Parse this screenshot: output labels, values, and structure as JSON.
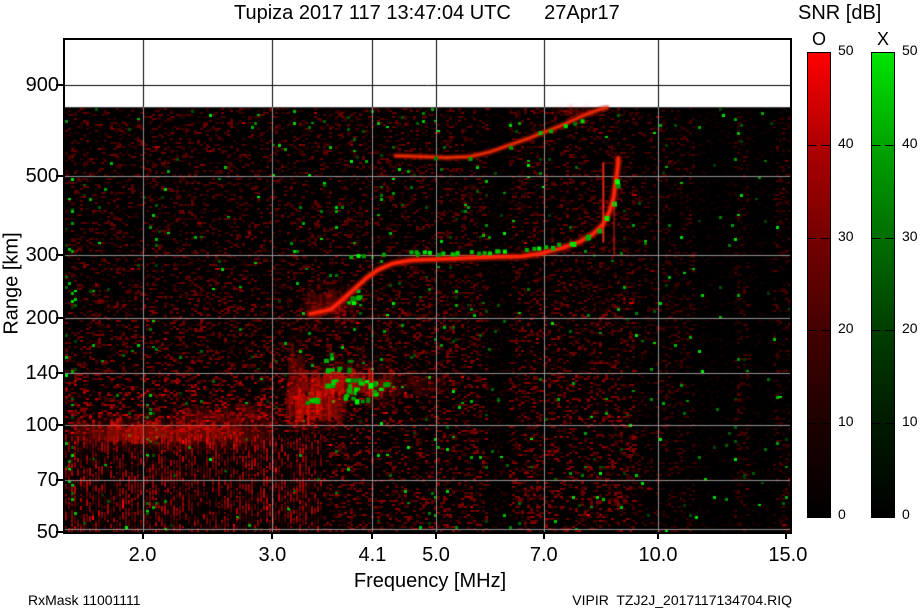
{
  "header": {
    "title": "Tupiza 2017 117 13:47:04 UTC      27Apr17"
  },
  "colorbar_panel": {
    "title": "SNR [dB]",
    "ticks": [
      50,
      40,
      30,
      20,
      10,
      0
    ],
    "bars": [
      {
        "label": "O",
        "top_color": "#ff0000"
      },
      {
        "label": "X",
        "top_color": "#00e400"
      }
    ]
  },
  "axes": {
    "x_title": "Frequency [MHz]",
    "y_title": "Range [km]"
  },
  "footer": {
    "left": "RxMask 11001111",
    "right": "VIPIR  TZJ2J_2017117134704.RIQ"
  },
  "chart_data": {
    "type": "heatmap",
    "title": "Tupiza 2017 117 13:47:04 UTC 27Apr17",
    "xlabel": "Frequency [MHz]",
    "ylabel": "Range [km]",
    "x_scale": "log",
    "y_scale": "log",
    "x_ticks": [
      2.0,
      3.0,
      4.1,
      5.0,
      7.0,
      10.0,
      15.0
    ],
    "y_ticks": [
      50,
      70,
      100,
      140,
      200,
      300,
      500,
      900
    ],
    "x_range": [
      1.57,
      15.1
    ],
    "y_range": [
      50,
      1205
    ],
    "data_region_top_km": 780,
    "snr_scale": {
      "min": 0,
      "max": 50,
      "ticks": [
        50,
        40,
        30,
        20,
        10,
        0
      ]
    },
    "series": [
      {
        "name": "O-mode F trace",
        "mode": "O",
        "color": "#ff2308",
        "style": "trace-strong",
        "points": [
          [
            3.38,
            205
          ],
          [
            3.6,
            211
          ],
          [
            3.71,
            222
          ],
          [
            3.86,
            239
          ],
          [
            4.02,
            258
          ],
          [
            4.18,
            273
          ],
          [
            4.37,
            284
          ],
          [
            4.62,
            290
          ],
          [
            5.0,
            292
          ],
          [
            5.49,
            294
          ],
          [
            6.03,
            296
          ],
          [
            6.52,
            297
          ],
          [
            6.93,
            303
          ],
          [
            7.38,
            313
          ],
          [
            7.81,
            326
          ],
          [
            8.16,
            343
          ],
          [
            8.42,
            366
          ],
          [
            8.6,
            398
          ],
          [
            8.71,
            438
          ],
          [
            8.77,
            489
          ],
          [
            8.82,
            531
          ],
          [
            8.83,
            560
          ]
        ]
      },
      {
        "name": "X-mode F trace",
        "mode": "X",
        "color": "#00d400",
        "style": "squares",
        "points": [
          [
            3.83,
            301
          ],
          [
            4.21,
            305
          ],
          [
            4.69,
            307
          ],
          [
            5.32,
            307
          ],
          [
            6.03,
            309
          ],
          [
            6.62,
            313
          ],
          [
            7.16,
            319
          ],
          [
            7.62,
            329
          ],
          [
            7.98,
            343
          ],
          [
            8.29,
            359
          ],
          [
            8.5,
            385
          ],
          [
            8.66,
            424
          ],
          [
            8.74,
            473
          ],
          [
            8.79,
            513
          ]
        ]
      },
      {
        "name": "O-mode second hop",
        "mode": "O",
        "color": "#e02800",
        "style": "trace-soft",
        "points": [
          [
            4.41,
            570
          ],
          [
            4.77,
            567
          ],
          [
            5.16,
            563
          ],
          [
            5.57,
            567
          ],
          [
            5.93,
            585
          ],
          [
            6.32,
            613
          ],
          [
            6.72,
            641
          ],
          [
            7.16,
            675
          ],
          [
            7.5,
            702
          ],
          [
            7.86,
            734
          ],
          [
            8.16,
            757
          ],
          [
            8.37,
            771
          ],
          [
            8.52,
            776
          ]
        ]
      },
      {
        "name": "X-mode second hop echoes",
        "mode": "X",
        "color": "#00c000",
        "style": "dots",
        "points": [
          [
            5.0,
            560
          ],
          [
            5.57,
            558
          ],
          [
            6.32,
            600
          ],
          [
            6.93,
            660
          ],
          [
            7.16,
            668
          ],
          [
            7.5,
            690
          ],
          [
            7.72,
            700
          ],
          [
            7.9,
            712
          ]
        ]
      }
    ],
    "spikes": [
      {
        "name": "O-mode critical frequency spike",
        "f": 8.43,
        "r": [
          327,
          542
        ],
        "width": 2,
        "alpha": 0.9
      },
      {
        "name": "X-mode critical frequency spike",
        "f": 8.72,
        "r": [
          300,
          470
        ],
        "width": 2,
        "alpha": 0.45
      }
    ],
    "regions": [
      {
        "name": "sporadic-E band",
        "f": [
          1.57,
          3.02
        ],
        "r": [
          88,
          102
        ],
        "intensity": 0.8
      },
      {
        "name": "sporadic-E upper fringe",
        "f": [
          2.15,
          3.1
        ],
        "r": [
          99,
          114
        ],
        "intensity": 0.3
      },
      {
        "name": "E-F transition blob",
        "f": [
          3.1,
          3.75
        ],
        "r": [
          100,
          124
        ],
        "intensity": 0.9
      },
      {
        "name": "F1 base band",
        "f": [
          3.2,
          4.45
        ],
        "r": [
          118,
          142
        ],
        "intensity": 0.8
      },
      {
        "name": "F1 base faint extension",
        "f": [
          4.4,
          5.15
        ],
        "r": [
          121,
          138
        ],
        "intensity": 0.25
      },
      {
        "name": "range-spread smear",
        "f": [
          3.12,
          3.32
        ],
        "r": [
          115,
          168
        ],
        "intensity": 0.4
      },
      {
        "name": "F-trace cusp fuzz",
        "f": [
          3.25,
          3.9
        ],
        "r": [
          198,
          240
        ],
        "intensity": 0.4
      },
      {
        "name": "second-hop top fuzz",
        "f": [
          7.1,
          8.35
        ],
        "r": [
          735,
          778
        ],
        "intensity": 0.35
      }
    ],
    "green_patches": [
      {
        "f": [
          3.52,
          3.8
        ],
        "r": [
          126,
          160
        ],
        "count": 14
      },
      {
        "f": [
          3.7,
          4.27
        ],
        "r": [
          117,
          136
        ],
        "count": 26
      },
      {
        "f": [
          3.27,
          3.45
        ],
        "r": [
          116,
          127
        ],
        "count": 6
      },
      {
        "f": [
          3.78,
          3.92
        ],
        "r": [
          222,
          240
        ],
        "count": 7
      }
    ],
    "noise": {
      "seed": 42,
      "red_chance": 0.4,
      "green_chance": 0.016,
      "dark_bands_mhz": [
        [
          5.85,
          6.25
        ],
        [
          11.2,
          12.6
        ],
        [
          13.2,
          14.2
        ]
      ],
      "green_columns_mhz": [
        [
          1.57,
          1.62
        ],
        [
          2.02,
          2.08
        ]
      ]
    }
  }
}
